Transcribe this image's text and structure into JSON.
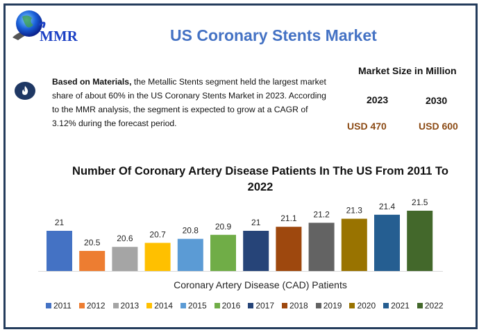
{
  "header": {
    "logo_text": "MMR",
    "title": "US Coronary Stents Market"
  },
  "info": {
    "icon": "flame-icon",
    "bold_lead": "Based on Materials,",
    "text": " the Metallic Stents segment held the largest market share of about 60% in the US Coronary Stents Market in 2023.  According to the MMR analysis, the segment is expected to grow at a CAGR of 3.12% during the forecast period."
  },
  "market_size": {
    "title": "Market Size in Million",
    "years": [
      "2023",
      "2030"
    ],
    "values": [
      "USD 470",
      "USD 600"
    ],
    "value_color": "#8b4a14"
  },
  "colors": {
    "frame": "#243c5c",
    "title": "#4472c4"
  },
  "chart_data": {
    "type": "bar",
    "title": "Number Of Coronary Artery Disease Patients In The US From 2011 To 2022",
    "xlabel": "Coronary Artery Disease (CAD) Patients",
    "ylabel": "",
    "categories": [
      "2011",
      "2012",
      "2013",
      "2014",
      "2015",
      "2016",
      "2017",
      "2018",
      "2019",
      "2020",
      "2021",
      "2022"
    ],
    "values": [
      21,
      20.5,
      20.6,
      20.7,
      20.8,
      20.9,
      21,
      21.1,
      21.2,
      21.3,
      21.4,
      21.5
    ],
    "data_labels": [
      "21",
      "20.5",
      "20.6",
      "20.7",
      "20.8",
      "20.9",
      "21",
      "21.1",
      "21.2",
      "21.3",
      "21.4",
      "21.5"
    ],
    "colors": [
      "#4472c4",
      "#ed7d31",
      "#a5a5a5",
      "#ffc000",
      "#5b9bd5",
      "#70ad47",
      "#264478",
      "#9e480e",
      "#636363",
      "#997300",
      "#255e91",
      "#43682b"
    ],
    "ylim": [
      20,
      22
    ],
    "grid": false,
    "legend": "bottom"
  }
}
